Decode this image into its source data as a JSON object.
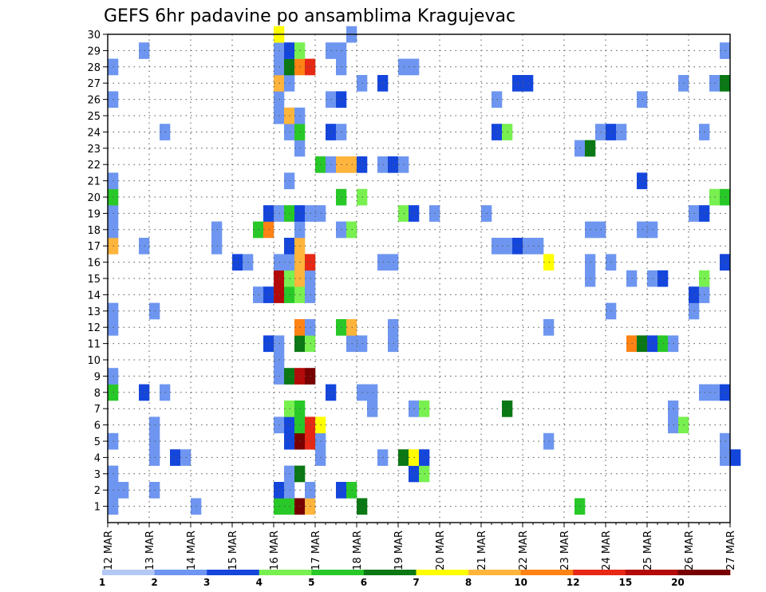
{
  "chart_data": {
    "type": "heatmap",
    "title": "GEFS 6hr padavine po ansamblima Kragujevac",
    "xlabel": "",
    "ylabel": "",
    "x_ticks": [
      "12 MAR",
      "13 MAR",
      "14 MAR",
      "15 MAR",
      "16 MAR",
      "17 MAR",
      "18 MAR",
      "19 MAR",
      "20 MAR",
      "21 MAR",
      "22 MAR",
      "23 MAR",
      "24 MAR",
      "25 MAR",
      "26 MAR",
      "27 MAR"
    ],
    "y_members": [
      1,
      2,
      3,
      4,
      5,
      6,
      7,
      8,
      9,
      10,
      11,
      12,
      13,
      14,
      15,
      16,
      17,
      18,
      19,
      20,
      21,
      22,
      23,
      24,
      25,
      26,
      27,
      28,
      29,
      30
    ],
    "time_step_hours": 6,
    "grid": "dotted",
    "legend": {
      "position": "bottom",
      "thresholds": [
        "1",
        "2",
        "3",
        "4",
        "5",
        "6",
        "7",
        "8",
        "10",
        "12",
        "15",
        "20"
      ],
      "colors": [
        "#b4c8f5",
        "#6e96f0",
        "#1446dc",
        "#78f050",
        "#28c828",
        "#0a7814",
        "#ffff00",
        "#ffb43c",
        "#ff8214",
        "#e62814",
        "#b40a0a",
        "#780000"
      ]
    },
    "cells": [
      {
        "m": 1,
        "t": 0,
        "c": 1
      },
      {
        "m": 1,
        "t": 8,
        "c": 1
      },
      {
        "m": 1,
        "t": 16,
        "c": 4
      },
      {
        "m": 1,
        "t": 17,
        "c": 4
      },
      {
        "m": 1,
        "t": 18,
        "c": 11
      },
      {
        "m": 1,
        "t": 19,
        "c": 7
      },
      {
        "m": 1,
        "t": 24,
        "c": 5
      },
      {
        "m": 1,
        "t": 45,
        "c": 4
      },
      {
        "m": 2,
        "t": 0,
        "c": 1
      },
      {
        "m": 2,
        "t": 1,
        "c": 1
      },
      {
        "m": 2,
        "t": 4,
        "c": 1
      },
      {
        "m": 2,
        "t": 16,
        "c": 2
      },
      {
        "m": 2,
        "t": 17,
        "c": 1
      },
      {
        "m": 2,
        "t": 19,
        "c": 1
      },
      {
        "m": 2,
        "t": 22,
        "c": 2
      },
      {
        "m": 2,
        "t": 23,
        "c": 4
      },
      {
        "m": 3,
        "t": 0,
        "c": 1
      },
      {
        "m": 3,
        "t": 17,
        "c": 1
      },
      {
        "m": 3,
        "t": 18,
        "c": 5
      },
      {
        "m": 3,
        "t": 29,
        "c": 2
      },
      {
        "m": 3,
        "t": 30,
        "c": 3
      },
      {
        "m": 4,
        "t": 4,
        "c": 1
      },
      {
        "m": 4,
        "t": 6,
        "c": 2
      },
      {
        "m": 4,
        "t": 7,
        "c": 1
      },
      {
        "m": 4,
        "t": 20,
        "c": 1
      },
      {
        "m": 4,
        "t": 26,
        "c": 1
      },
      {
        "m": 4,
        "t": 28,
        "c": 5
      },
      {
        "m": 4,
        "t": 29,
        "c": 6
      },
      {
        "m": 4,
        "t": 30,
        "c": 2
      },
      {
        "m": 4,
        "t": 59,
        "c": 1
      },
      {
        "m": 4,
        "t": 60,
        "c": 2
      },
      {
        "m": 5,
        "t": 0,
        "c": 1
      },
      {
        "m": 5,
        "t": 4,
        "c": 1
      },
      {
        "m": 5,
        "t": 17,
        "c": 2
      },
      {
        "m": 5,
        "t": 18,
        "c": 11
      },
      {
        "m": 5,
        "t": 19,
        "c": 9
      },
      {
        "m": 5,
        "t": 20,
        "c": 1
      },
      {
        "m": 5,
        "t": 42,
        "c": 1
      },
      {
        "m": 5,
        "t": 59,
        "c": 1
      },
      {
        "m": 6,
        "t": 4,
        "c": 1
      },
      {
        "m": 6,
        "t": 16,
        "c": 1
      },
      {
        "m": 6,
        "t": 17,
        "c": 2
      },
      {
        "m": 6,
        "t": 18,
        "c": 4
      },
      {
        "m": 6,
        "t": 19,
        "c": 9
      },
      {
        "m": 6,
        "t": 20,
        "c": 6
      },
      {
        "m": 6,
        "t": 54,
        "c": 1
      },
      {
        "m": 6,
        "t": 55,
        "c": 3
      },
      {
        "m": 7,
        "t": 17,
        "c": 3
      },
      {
        "m": 7,
        "t": 18,
        "c": 4
      },
      {
        "m": 7,
        "t": 25,
        "c": 1
      },
      {
        "m": 7,
        "t": 29,
        "c": 1
      },
      {
        "m": 7,
        "t": 30,
        "c": 3
      },
      {
        "m": 7,
        "t": 38,
        "c": 5
      },
      {
        "m": 7,
        "t": 54,
        "c": 1
      },
      {
        "m": 8,
        "t": 0,
        "c": 4
      },
      {
        "m": 8,
        "t": 3,
        "c": 2
      },
      {
        "m": 8,
        "t": 5,
        "c": 1
      },
      {
        "m": 8,
        "t": 21,
        "c": 2
      },
      {
        "m": 8,
        "t": 24,
        "c": 1
      },
      {
        "m": 8,
        "t": 25,
        "c": 1
      },
      {
        "m": 8,
        "t": 57,
        "c": 1
      },
      {
        "m": 8,
        "t": 58,
        "c": 1
      },
      {
        "m": 8,
        "t": 59,
        "c": 2
      },
      {
        "m": 9,
        "t": 0,
        "c": 1
      },
      {
        "m": 9,
        "t": 16,
        "c": 1
      },
      {
        "m": 9,
        "t": 17,
        "c": 5
      },
      {
        "m": 9,
        "t": 18,
        "c": 10
      },
      {
        "m": 9,
        "t": 19,
        "c": 11
      },
      {
        "m": 10,
        "t": 16,
        "c": 1
      },
      {
        "m": 11,
        "t": 15,
        "c": 2
      },
      {
        "m": 11,
        "t": 16,
        "c": 1
      },
      {
        "m": 11,
        "t": 18,
        "c": 5
      },
      {
        "m": 11,
        "t": 19,
        "c": 3
      },
      {
        "m": 11,
        "t": 23,
        "c": 1
      },
      {
        "m": 11,
        "t": 24,
        "c": 1
      },
      {
        "m": 11,
        "t": 27,
        "c": 1
      },
      {
        "m": 11,
        "t": 50,
        "c": 8
      },
      {
        "m": 11,
        "t": 51,
        "c": 5
      },
      {
        "m": 11,
        "t": 52,
        "c": 2
      },
      {
        "m": 11,
        "t": 53,
        "c": 4
      },
      {
        "m": 11,
        "t": 54,
        "c": 1
      },
      {
        "m": 12,
        "t": 0,
        "c": 1
      },
      {
        "m": 12,
        "t": 18,
        "c": 8
      },
      {
        "m": 12,
        "t": 19,
        "c": 1
      },
      {
        "m": 12,
        "t": 22,
        "c": 4
      },
      {
        "m": 12,
        "t": 23,
        "c": 7
      },
      {
        "m": 12,
        "t": 27,
        "c": 1
      },
      {
        "m": 12,
        "t": 42,
        "c": 1
      },
      {
        "m": 13,
        "t": 0,
        "c": 1
      },
      {
        "m": 13,
        "t": 4,
        "c": 1
      },
      {
        "m": 13,
        "t": 48,
        "c": 1
      },
      {
        "m": 13,
        "t": 56,
        "c": 1
      },
      {
        "m": 14,
        "t": 14,
        "c": 1
      },
      {
        "m": 14,
        "t": 15,
        "c": 2
      },
      {
        "m": 14,
        "t": 16,
        "c": 10
      },
      {
        "m": 14,
        "t": 17,
        "c": 4
      },
      {
        "m": 14,
        "t": 18,
        "c": 3
      },
      {
        "m": 14,
        "t": 19,
        "c": 1
      },
      {
        "m": 14,
        "t": 56,
        "c": 2
      },
      {
        "m": 14,
        "t": 57,
        "c": 1
      },
      {
        "m": 15,
        "t": 16,
        "c": 10
      },
      {
        "m": 15,
        "t": 17,
        "c": 3
      },
      {
        "m": 15,
        "t": 18,
        "c": 7
      },
      {
        "m": 15,
        "t": 19,
        "c": 1
      },
      {
        "m": 15,
        "t": 46,
        "c": 1
      },
      {
        "m": 15,
        "t": 50,
        "c": 1
      },
      {
        "m": 15,
        "t": 52,
        "c": 1
      },
      {
        "m": 15,
        "t": 53,
        "c": 2
      },
      {
        "m": 15,
        "t": 57,
        "c": 3
      },
      {
        "m": 16,
        "t": 12,
        "c": 2
      },
      {
        "m": 16,
        "t": 13,
        "c": 1
      },
      {
        "m": 16,
        "t": 16,
        "c": 1
      },
      {
        "m": 16,
        "t": 17,
        "c": 1
      },
      {
        "m": 16,
        "t": 18,
        "c": 7
      },
      {
        "m": 16,
        "t": 19,
        "c": 9
      },
      {
        "m": 16,
        "t": 26,
        "c": 1
      },
      {
        "m": 16,
        "t": 27,
        "c": 1
      },
      {
        "m": 16,
        "t": 42,
        "c": 6
      },
      {
        "m": 16,
        "t": 46,
        "c": 1
      },
      {
        "m": 16,
        "t": 48,
        "c": 1
      },
      {
        "m": 16,
        "t": 59,
        "c": 2
      },
      {
        "m": 17,
        "t": 0,
        "c": 7
      },
      {
        "m": 17,
        "t": 3,
        "c": 1
      },
      {
        "m": 17,
        "t": 10,
        "c": 1
      },
      {
        "m": 17,
        "t": 17,
        "c": 2
      },
      {
        "m": 17,
        "t": 18,
        "c": 7
      },
      {
        "m": 17,
        "t": 37,
        "c": 1
      },
      {
        "m": 17,
        "t": 38,
        "c": 1
      },
      {
        "m": 17,
        "t": 39,
        "c": 2
      },
      {
        "m": 17,
        "t": 40,
        "c": 1
      },
      {
        "m": 17,
        "t": 41,
        "c": 1
      },
      {
        "m": 18,
        "t": 0,
        "c": 1
      },
      {
        "m": 18,
        "t": 10,
        "c": 1
      },
      {
        "m": 18,
        "t": 14,
        "c": 4
      },
      {
        "m": 18,
        "t": 15,
        "c": 8
      },
      {
        "m": 18,
        "t": 18,
        "c": 1
      },
      {
        "m": 18,
        "t": 22,
        "c": 1
      },
      {
        "m": 18,
        "t": 23,
        "c": 3
      },
      {
        "m": 18,
        "t": 46,
        "c": 1
      },
      {
        "m": 18,
        "t": 47,
        "c": 1
      },
      {
        "m": 18,
        "t": 51,
        "c": 1
      },
      {
        "m": 18,
        "t": 52,
        "c": 1
      },
      {
        "m": 19,
        "t": 0,
        "c": 1
      },
      {
        "m": 19,
        "t": 15,
        "c": 2
      },
      {
        "m": 19,
        "t": 16,
        "c": 1
      },
      {
        "m": 19,
        "t": 17,
        "c": 4
      },
      {
        "m": 19,
        "t": 18,
        "c": 2
      },
      {
        "m": 19,
        "t": 19,
        "c": 1
      },
      {
        "m": 19,
        "t": 20,
        "c": 1
      },
      {
        "m": 19,
        "t": 28,
        "c": 3
      },
      {
        "m": 19,
        "t": 29,
        "c": 2
      },
      {
        "m": 19,
        "t": 31,
        "c": 1
      },
      {
        "m": 19,
        "t": 36,
        "c": 1
      },
      {
        "m": 19,
        "t": 56,
        "c": 1
      },
      {
        "m": 19,
        "t": 57,
        "c": 2
      },
      {
        "m": 20,
        "t": 0,
        "c": 4
      },
      {
        "m": 20,
        "t": 22,
        "c": 4
      },
      {
        "m": 20,
        "t": 24,
        "c": 3
      },
      {
        "m": 20,
        "t": 58,
        "c": 3
      },
      {
        "m": 20,
        "t": 59,
        "c": 4
      },
      {
        "m": 21,
        "t": 0,
        "c": 1
      },
      {
        "m": 21,
        "t": 17,
        "c": 1
      },
      {
        "m": 21,
        "t": 51,
        "c": 2
      },
      {
        "m": 22,
        "t": 20,
        "c": 4
      },
      {
        "m": 22,
        "t": 21,
        "c": 1
      },
      {
        "m": 22,
        "t": 22,
        "c": 7
      },
      {
        "m": 22,
        "t": 23,
        "c": 7
      },
      {
        "m": 22,
        "t": 24,
        "c": 2
      },
      {
        "m": 22,
        "t": 26,
        "c": 1
      },
      {
        "m": 22,
        "t": 27,
        "c": 2
      },
      {
        "m": 22,
        "t": 28,
        "c": 1
      },
      {
        "m": 23,
        "t": 18,
        "c": 1
      },
      {
        "m": 23,
        "t": 45,
        "c": 1
      },
      {
        "m": 23,
        "t": 46,
        "c": 5
      },
      {
        "m": 24,
        "t": 5,
        "c": 1
      },
      {
        "m": 24,
        "t": 17,
        "c": 1
      },
      {
        "m": 24,
        "t": 18,
        "c": 4
      },
      {
        "m": 24,
        "t": 21,
        "c": 2
      },
      {
        "m": 24,
        "t": 22,
        "c": 1
      },
      {
        "m": 24,
        "t": 37,
        "c": 2
      },
      {
        "m": 24,
        "t": 38,
        "c": 3
      },
      {
        "m": 24,
        "t": 47,
        "c": 1
      },
      {
        "m": 24,
        "t": 48,
        "c": 2
      },
      {
        "m": 24,
        "t": 49,
        "c": 1
      },
      {
        "m": 24,
        "t": 57,
        "c": 1
      },
      {
        "m": 25,
        "t": 16,
        "c": 1
      },
      {
        "m": 25,
        "t": 17,
        "c": 7
      },
      {
        "m": 25,
        "t": 18,
        "c": 1
      },
      {
        "m": 26,
        "t": 0,
        "c": 1
      },
      {
        "m": 26,
        "t": 16,
        "c": 1
      },
      {
        "m": 26,
        "t": 21,
        "c": 1
      },
      {
        "m": 26,
        "t": 22,
        "c": 2
      },
      {
        "m": 26,
        "t": 37,
        "c": 1
      },
      {
        "m": 26,
        "t": 51,
        "c": 1
      },
      {
        "m": 27,
        "t": 16,
        "c": 7
      },
      {
        "m": 27,
        "t": 17,
        "c": 1
      },
      {
        "m": 27,
        "t": 24,
        "c": 1
      },
      {
        "m": 27,
        "t": 26,
        "c": 2
      },
      {
        "m": 27,
        "t": 39,
        "c": 2
      },
      {
        "m": 27,
        "t": 40,
        "c": 2
      },
      {
        "m": 27,
        "t": 55,
        "c": 1
      },
      {
        "m": 27,
        "t": 58,
        "c": 1
      },
      {
        "m": 27,
        "t": 59,
        "c": 5
      },
      {
        "m": 28,
        "t": 0,
        "c": 1
      },
      {
        "m": 28,
        "t": 16,
        "c": 1
      },
      {
        "m": 28,
        "t": 17,
        "c": 5
      },
      {
        "m": 28,
        "t": 18,
        "c": 8
      },
      {
        "m": 28,
        "t": 19,
        "c": 9
      },
      {
        "m": 28,
        "t": 22,
        "c": 1
      },
      {
        "m": 28,
        "t": 28,
        "c": 1
      },
      {
        "m": 28,
        "t": 29,
        "c": 1
      },
      {
        "m": 29,
        "t": 3,
        "c": 1
      },
      {
        "m": 29,
        "t": 16,
        "c": 1
      },
      {
        "m": 29,
        "t": 17,
        "c": 2
      },
      {
        "m": 29,
        "t": 18,
        "c": 3
      },
      {
        "m": 29,
        "t": 21,
        "c": 1
      },
      {
        "m": 29,
        "t": 22,
        "c": 1
      },
      {
        "m": 29,
        "t": 59,
        "c": 1
      },
      {
        "m": 30,
        "t": 16,
        "c": 6
      },
      {
        "m": 30,
        "t": 23,
        "c": 1
      }
    ]
  }
}
